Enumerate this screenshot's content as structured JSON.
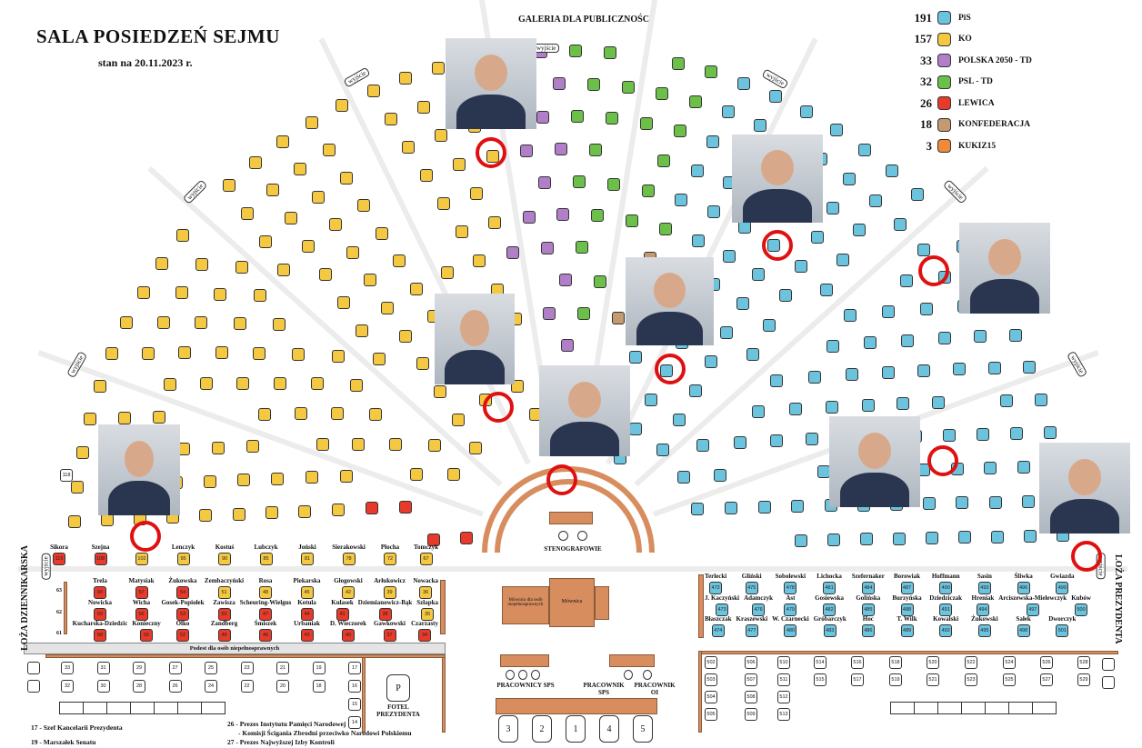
{
  "header": {
    "title": "SALA  POSIEDZEŃ SEJMU",
    "date": "stan na 20.11.2023 r.",
    "gallery": "GALERIA DLA PUBLICZNOŚCI",
    "exit": "wyjście"
  },
  "legend": [
    {
      "count": "191",
      "name": "PiS",
      "color": "#6cc3dd"
    },
    {
      "count": "157",
      "name": "KO",
      "color": "#f5c842"
    },
    {
      "count": "33",
      "name": "POLSKA 2050 - TD",
      "color": "#b07fc7"
    },
    {
      "count": "32",
      "name": "PSL - TD",
      "color": "#6cc04a"
    },
    {
      "count": "26",
      "name": "LEWICA",
      "color": "#e83a2a"
    },
    {
      "count": "18",
      "name": "KONFEDERACJA",
      "color": "#c49a70"
    },
    {
      "count": "3",
      "name": "KUKIZ15",
      "color": "#f08a3a"
    }
  ],
  "highlighted_seats": [
    "258",
    "345",
    "415",
    "336",
    "176",
    "446",
    "349",
    "102",
    "473"
  ],
  "front_left": {
    "row_labels": [
      "63",
      "62",
      "61"
    ],
    "rows": [
      [
        {
          "n": "115",
          "name": "Sikora",
          "p": "LEWICA"
        },
        {
          "n": "108",
          "name": "Szejna",
          "p": "LEWICA"
        },
        {
          "n": "102",
          "name": "",
          "p": "KO"
        },
        {
          "n": "95",
          "name": "Lenczyk",
          "p": "KO"
        },
        {
          "n": "90",
          "name": "Kostuś",
          "p": "KO"
        },
        {
          "n": "85",
          "name": "Lubczyk",
          "p": "KO"
        },
        {
          "n": "81",
          "name": "Joński",
          "p": "KO"
        },
        {
          "n": "78",
          "name": "Sierakowski",
          "p": "KO"
        },
        {
          "n": "72",
          "name": "Płocha",
          "p": "KO"
        },
        {
          "n": "67",
          "name": "Tomczyk",
          "p": "KO"
        }
      ],
      [
        {
          "n": "60",
          "name": "Trela",
          "p": "LEWICA"
        },
        {
          "n": "57",
          "name": "Matysiak",
          "p": "LEWICA"
        },
        {
          "n": "54",
          "name": "Żukowska",
          "p": "LEWICA"
        },
        {
          "n": "51",
          "name": "Zembaczyński",
          "p": "KO"
        },
        {
          "n": "48",
          "name": "Rosa",
          "p": "KO"
        },
        {
          "n": "45",
          "name": "Piekarska",
          "p": "KO"
        },
        {
          "n": "42",
          "name": "Głogowski",
          "p": "KO"
        },
        {
          "n": "39",
          "name": "Arłukowicz",
          "p": "KO"
        },
        {
          "n": "36",
          "name": "Nowacka",
          "p": "KO"
        }
      ],
      [
        {
          "n": "59",
          "name": "Nowicka",
          "p": "LEWICA"
        },
        {
          "n": "56",
          "name": "Wicha",
          "p": "LEWICA"
        },
        {
          "n": "53",
          "name": "Gosek-Popiołek",
          "p": "LEWICA"
        },
        {
          "n": "50",
          "name": "Zawisza",
          "p": "LEWICA"
        },
        {
          "n": "47",
          "name": "Scheuring-Wielgus",
          "p": "LEWICA"
        },
        {
          "n": "44",
          "name": "Kotula",
          "p": "LEWICA"
        },
        {
          "n": "41",
          "name": "Kulasek",
          "p": "LEWICA"
        },
        {
          "n": "38",
          "name": "Dziemianowicz-Bąk",
          "p": "LEWICA"
        },
        {
          "n": "35",
          "name": "Szłapka",
          "p": "KO"
        }
      ],
      [
        {
          "n": "58",
          "name": "Kucharska-Dziedzic",
          "p": "LEWICA"
        },
        {
          "n": "55",
          "name": "Konieczny",
          "p": "LEWICA"
        },
        {
          "n": "52",
          "name": "Olko",
          "p": "LEWICA"
        },
        {
          "n": "49",
          "name": "Zandberg",
          "p": "LEWICA"
        },
        {
          "n": "46",
          "name": "Śmiszek",
          "p": "LEWICA"
        },
        {
          "n": "43",
          "name": "Urbaniak",
          "p": "LEWICA"
        },
        {
          "n": "40",
          "name": "D. Wieczorek",
          "p": "LEWICA"
        },
        {
          "n": "37",
          "name": "Gawkowski",
          "p": "LEWICA"
        },
        {
          "n": "34",
          "name": "Czarzasty",
          "p": "LEWICA"
        }
      ]
    ]
  },
  "front_right": {
    "rows": [
      [
        {
          "n": "472",
          "name": "Terlecki"
        },
        {
          "n": "475",
          "name": "Gliński"
        },
        {
          "n": "478",
          "name": "Sobolewski"
        },
        {
          "n": "481",
          "name": "Lichocka"
        },
        {
          "n": "484",
          "name": "Szefernaker"
        },
        {
          "n": "487",
          "name": "Borowiak"
        },
        {
          "n": "490",
          "name": "Hoffmann"
        },
        {
          "n": "493",
          "name": "Sasin"
        },
        {
          "n": "496",
          "name": "Śliwka"
        },
        {
          "n": "499",
          "name": "Gwiazda"
        }
      ],
      [
        {
          "n": "473",
          "name": "J. Kaczyński"
        },
        {
          "n": "476",
          "name": "Adamczyk"
        },
        {
          "n": "479",
          "name": "Ast"
        },
        {
          "n": "482",
          "name": "Gosiewska"
        },
        {
          "n": "485",
          "name": "Golińska"
        },
        {
          "n": "488",
          "name": "Burzyńska"
        },
        {
          "n": "491",
          "name": "Dziedziczak"
        },
        {
          "n": "494",
          "name": "Hreniak"
        },
        {
          "n": "497",
          "name": "Arciszewska-Mielewczyk"
        },
        {
          "n": "500",
          "name": "Kubów"
        }
      ],
      [
        {
          "n": "474",
          "name": "Błaszczak"
        },
        {
          "n": "477",
          "name": "Kraszewski"
        },
        {
          "n": "480",
          "name": "W. Czarnecki"
        },
        {
          "n": "483",
          "name": "Gróbarczyk"
        },
        {
          "n": "486",
          "name": "Hoc"
        },
        {
          "n": "489",
          "name": "T. Wilk"
        },
        {
          "n": "492",
          "name": "Kowalski"
        },
        {
          "n": "495",
          "name": "Żukowski"
        },
        {
          "n": "498",
          "name": "Sałek"
        },
        {
          "n": "501",
          "name": "Dworczyk"
        }
      ]
    ]
  },
  "guest_left": {
    "rows": [
      [
        "33",
        "31",
        "29",
        "27",
        "25",
        "23",
        "21",
        "19",
        "17"
      ],
      [
        "32",
        "30",
        "28",
        "26",
        "24",
        "22",
        "20",
        "18",
        "16"
      ]
    ],
    "extra": [
      "15",
      "14"
    ]
  },
  "guest_right": {
    "rows": [
      [
        "502",
        "506",
        "510",
        "514",
        "516",
        "518",
        "520",
        "522",
        "524",
        "526",
        "528"
      ],
      [
        "503",
        "507",
        "511",
        "515",
        "517",
        "519",
        "521",
        "523",
        "525",
        "527",
        "529"
      ],
      [
        "504",
        "508",
        "512"
      ],
      [
        "505",
        "509",
        "513"
      ]
    ]
  },
  "labels": {
    "podest": "Podest dla osób niepełnosprawnych",
    "stenografowie": "STENOGRAFOWIE",
    "mownica": "Mównica",
    "mownica_niepelnosprawni": "Mównica dla osób niepełnosprawnych",
    "pracownicy_sps": "PRACOWNICY SPS",
    "pracownik_sps": "PRACOWNIK SPS",
    "pracownik_oi": "PRACOWNIK OI",
    "fotel_p": "P",
    "fotel": "FOTEL PREZYDENTA",
    "loza_dziennikarska": "LOŻA DZIENNIKARSKA",
    "loza_prezydenta": "LOŻA PREZYDENTA",
    "seat_118": "118",
    "presidium": [
      "3",
      "2",
      "1",
      "4",
      "5"
    ]
  },
  "notes": [
    "17 - Szef Kancelarii Prezydenta",
    "19 - Marszałek Senatu",
    "26 - Prezes Instytutu Pamięci Narodowej",
    "- Komisji Ścigania Zbrodni przeciwko Narodowi Polskiemu",
    "27 - Prezes Najwyższej Izby Kontroli"
  ]
}
